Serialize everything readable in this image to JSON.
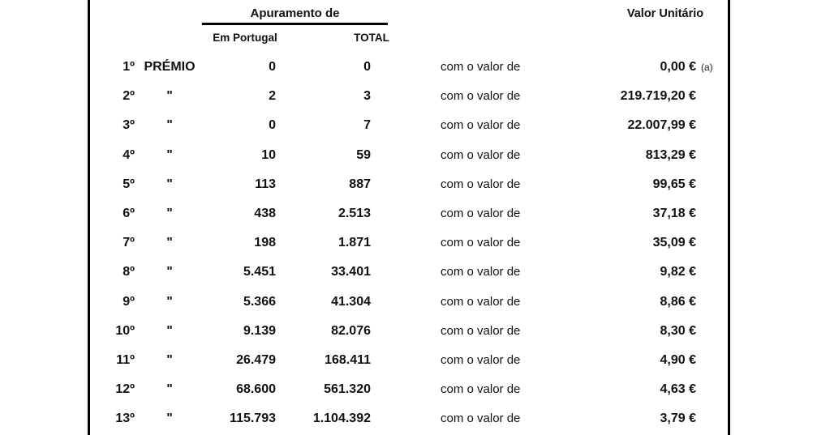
{
  "table": {
    "header": {
      "apuramento_label": "Apuramento de",
      "col_em_portugal": "Em Portugal",
      "col_total": "TOTAL",
      "col_valor_unitario": "Valor Unitário"
    },
    "com_o_valor_label": "com o valor de",
    "rows": [
      {
        "ordinal": "1º",
        "label": "PRÉMIO",
        "em_portugal": "0",
        "total": "0",
        "valor": "0,00 €",
        "note": "(a)"
      },
      {
        "ordinal": "2º",
        "label": "\"",
        "em_portugal": "2",
        "total": "3",
        "valor": "219.719,20 €",
        "note": ""
      },
      {
        "ordinal": "3º",
        "label": "\"",
        "em_portugal": "0",
        "total": "7",
        "valor": "22.007,99 €",
        "note": ""
      },
      {
        "ordinal": "4º",
        "label": "\"",
        "em_portugal": "10",
        "total": "59",
        "valor": "813,29 €",
        "note": ""
      },
      {
        "ordinal": "5º",
        "label": "\"",
        "em_portugal": "113",
        "total": "887",
        "valor": "99,65 €",
        "note": ""
      },
      {
        "ordinal": "6º",
        "label": "\"",
        "em_portugal": "438",
        "total": "2.513",
        "valor": "37,18 €",
        "note": ""
      },
      {
        "ordinal": "7º",
        "label": "\"",
        "em_portugal": "198",
        "total": "1.871",
        "valor": "35,09 €",
        "note": ""
      },
      {
        "ordinal": "8º",
        "label": "\"",
        "em_portugal": "5.451",
        "total": "33.401",
        "valor": "9,82 €",
        "note": ""
      },
      {
        "ordinal": "9º",
        "label": "\"",
        "em_portugal": "5.366",
        "total": "41.304",
        "valor": "8,86 €",
        "note": ""
      },
      {
        "ordinal": "10º",
        "label": "\"",
        "em_portugal": "9.139",
        "total": "82.076",
        "valor": "8,30 €",
        "note": ""
      },
      {
        "ordinal": "11º",
        "label": "\"",
        "em_portugal": "26.479",
        "total": "168.411",
        "valor": "4,90 €",
        "note": ""
      },
      {
        "ordinal": "12º",
        "label": "\"",
        "em_portugal": "68.600",
        "total": "561.320",
        "valor": "4,63 €",
        "note": ""
      },
      {
        "ordinal": "13º",
        "label": "\"",
        "em_portugal": "115.793",
        "total": "1.104.392",
        "valor": "3,79 €",
        "note": ""
      }
    ]
  },
  "colors": {
    "line": "#000000",
    "text": "#111111",
    "background": "#ffffff"
  }
}
